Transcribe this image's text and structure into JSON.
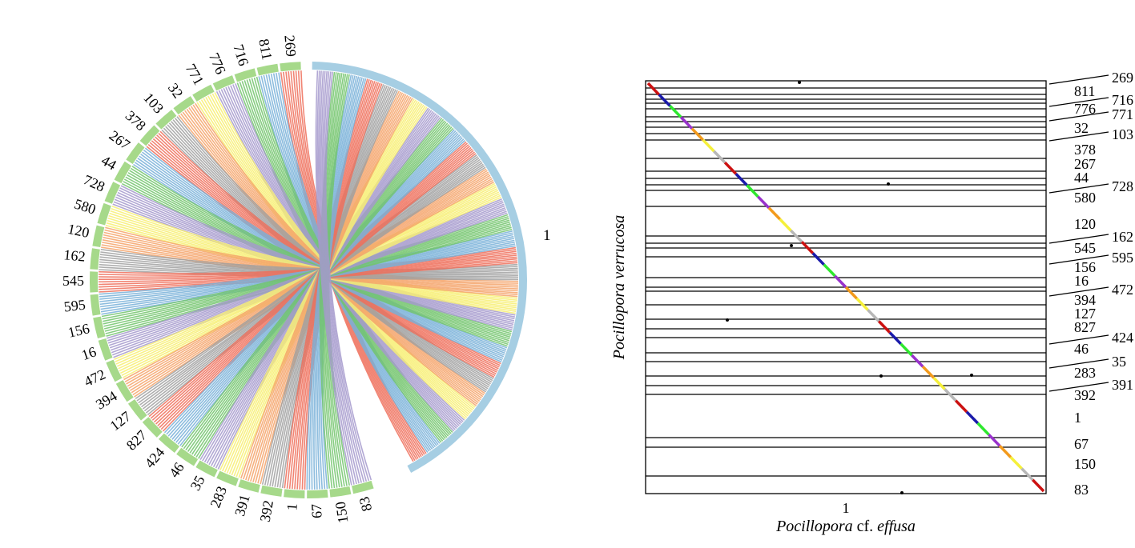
{
  "circos": {
    "reference": {
      "label": "1",
      "color": "#a6cee3"
    },
    "scaffold_color": "#a6d98a",
    "scaffolds": [
      "269",
      "811",
      "716",
      "776",
      "771",
      "32",
      "103",
      "378",
      "267",
      "44",
      "728",
      "580",
      "120",
      "162",
      "545",
      "595",
      "156",
      "16",
      "472",
      "394",
      "127",
      "827",
      "424",
      "46",
      "35",
      "283",
      "391",
      "392",
      "1",
      "67",
      "150",
      "83"
    ],
    "link_colors": [
      "#ef6f5a",
      "#78b0d8",
      "#72c46c",
      "#a599cc",
      "#f7ef72",
      "#f4a36a",
      "#a0a0a0"
    ]
  },
  "dotplot": {
    "x_axis_tick": "1",
    "x_axis_title_pre": "Pocillopora",
    "x_axis_title_mid": " cf. ",
    "x_axis_title_post": "effusa",
    "y_axis_title": "Pocillopora verrucosa",
    "scaffolds_right": [
      "269",
      "811",
      "716",
      "776",
      "771",
      "32",
      "103",
      "378",
      "267",
      "44",
      "728",
      "580",
      "120",
      "162",
      "545",
      "595",
      "156",
      "16",
      "472",
      "394",
      "127",
      "827",
      "424",
      "46",
      "35",
      "283",
      "391",
      "392",
      "1",
      "67",
      "150",
      "83"
    ],
    "segment_colors": [
      "#cc1111",
      "#1a1aaa",
      "#2ee82e",
      "#9932cc",
      "#f39a1c",
      "#f5f03a",
      "#b7b7b7"
    ]
  }
}
